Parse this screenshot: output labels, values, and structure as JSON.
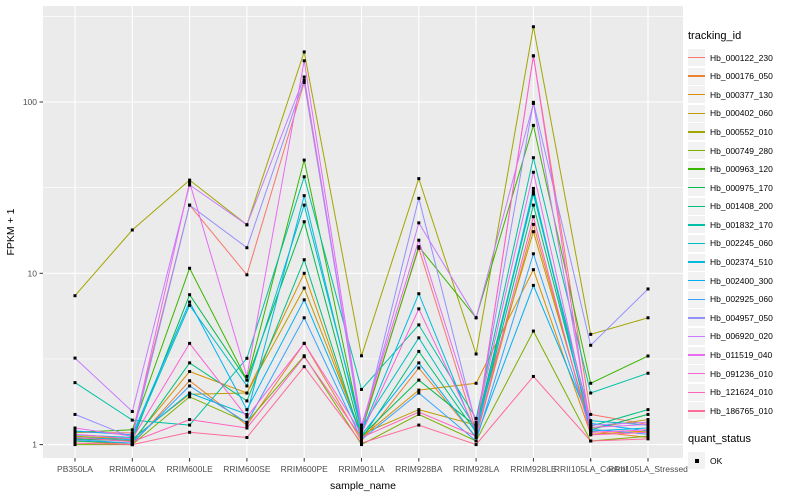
{
  "chart_data": {
    "type": "line",
    "title": "",
    "xlabel": "sample_name",
    "ylabel": "FPKM + 1",
    "y_scale": "log10",
    "y_ticks": [
      {
        "value": 1,
        "label": "1"
      },
      {
        "value": 10,
        "label": "10"
      },
      {
        "value": 100,
        "label": "100"
      }
    ],
    "y_minor_exponents": [
      0.5,
      1.5,
      2.5
    ],
    "ylim_log": [
      0,
      2.56
    ],
    "grid": "on",
    "legend_position": "right",
    "panel_bg": "#EBEBEB",
    "grid_color": "#FFFFFF",
    "tick_text_color": "#4D4D4D",
    "point_color": "#000000",
    "categories": [
      "PB350LA",
      "RRIM600LA",
      "RRIM600LE",
      "RRIM600SE",
      "RRIM600PE",
      "RRIM901LA",
      "RRIM928BA",
      "RRIM928LA",
      "RRIM928LE",
      "RRII105LA_Control",
      "RRII105LA_Stressed"
    ],
    "series": [
      {
        "name": "Hb_000122_230",
        "color": "#F8766D",
        "values": [
          1.18,
          1.17,
          25,
          9.8,
          130,
          1.25,
          14,
          1.2,
          186,
          1.5,
          1.31
        ]
      },
      {
        "name": "Hb_000176_050",
        "color": "#EA8331",
        "values": [
          1.05,
          1.0,
          2.36,
          1.3,
          3.9,
          1.05,
          2.8,
          1.1,
          19.3,
          1.2,
          1.1
        ]
      },
      {
        "name": "Hb_000377_130",
        "color": "#D89000",
        "values": [
          1.1,
          1.05,
          2.67,
          2.0,
          10,
          1.1,
          2.08,
          2.28,
          10.5,
          1.15,
          1.2
        ]
      },
      {
        "name": "Hb_000402_060",
        "color": "#C09B00",
        "values": [
          1.12,
          1.08,
          1.97,
          2.0,
          8.2,
          1.15,
          1.6,
          1.3,
          17.5,
          1.25,
          1.4
        ]
      },
      {
        "name": "Hb_000552_010",
        "color": "#A3A500",
        "values": [
          7.4,
          17.9,
          35,
          19.2,
          196,
          3.3,
          35.7,
          3.38,
          275,
          4.4,
          5.5
        ]
      },
      {
        "name": "Hb_000749_280",
        "color": "#7CAE00",
        "values": [
          1.0,
          1.0,
          1.9,
          1.35,
          3.3,
          1.0,
          1.5,
          1.05,
          4.6,
          1.05,
          1.12
        ]
      },
      {
        "name": "Hb_000963_120",
        "color": "#39B600",
        "values": [
          1.18,
          1.22,
          10.7,
          2.38,
          45.8,
          1.2,
          14.3,
          5.5,
          73,
          2.28,
          3.29
        ]
      },
      {
        "name": "Hb_000975_170",
        "color": "#00BB4E",
        "values": [
          1.08,
          1.05,
          7.5,
          2.38,
          20,
          1.12,
          2.38,
          1.28,
          30,
          1.22,
          1.5
        ]
      },
      {
        "name": "Hb_001408_200",
        "color": "#00BF7D",
        "values": [
          1.05,
          1.02,
          3.0,
          1.8,
          12,
          1.08,
          3.5,
          1.18,
          25,
          1.28,
          1.6
        ]
      },
      {
        "name": "Hb_001832_170",
        "color": "#00C1A7",
        "values": [
          2.3,
          1.39,
          1.3,
          3.19,
          36.6,
          2.1,
          5.0,
          1.42,
          47.3,
          2.0,
          2.61
        ]
      },
      {
        "name": "Hb_002245_060",
        "color": "#00BFC4",
        "values": [
          1.14,
          1.1,
          6.5,
          2.2,
          25,
          1.26,
          4.2,
          1.24,
          29,
          1.38,
          1.3
        ]
      },
      {
        "name": "Hb_002374_510",
        "color": "#00BAE0",
        "values": [
          1.1,
          1.07,
          2.0,
          1.5,
          28.4,
          1.18,
          7.6,
          1.15,
          31.3,
          1.2,
          1.25
        ]
      },
      {
        "name": "Hb_002400_300",
        "color": "#00B0F6",
        "values": [
          1.2,
          1.14,
          6.8,
          1.6,
          7.0,
          1.14,
          3.0,
          1.1,
          8.5,
          1.33,
          1.2
        ]
      },
      {
        "name": "Hb_002925_060",
        "color": "#35A2FF",
        "values": [
          1.07,
          1.02,
          2.2,
          1.34,
          5.5,
          1.07,
          2.0,
          1.05,
          13,
          1.23,
          1.15
        ]
      },
      {
        "name": "Hb_004957_050",
        "color": "#9590FF",
        "values": [
          1.5,
          1.1,
          25,
          14.1,
          134,
          1.2,
          27.4,
          1.3,
          99.6,
          3.8,
          8.1
        ]
      },
      {
        "name": "Hb_006920_020",
        "color": "#C77CFF",
        "values": [
          3.2,
          1.56,
          32.8,
          19.2,
          140,
          1.24,
          19.7,
          5.5,
          98,
          1.3,
          1.35
        ]
      },
      {
        "name": "Hb_011519_040",
        "color": "#E76BF3",
        "values": [
          1.25,
          1.12,
          34,
          2.5,
          174,
          1.3,
          15.6,
          1.35,
          38.9,
          1.26,
          1.31
        ]
      },
      {
        "name": "Hb_091236_010",
        "color": "#FA62DB",
        "values": [
          1.15,
          1.08,
          3.9,
          1.45,
          3.9,
          1.16,
          6.2,
          1.2,
          186,
          1.18,
          1.22
        ]
      },
      {
        "name": "Hb_121624_010",
        "color": "#FF62BC",
        "values": [
          1.1,
          1.04,
          1.4,
          1.25,
          3.26,
          1.1,
          1.55,
          1.12,
          21.4,
          1.14,
          1.18
        ]
      },
      {
        "name": "Hb_186765_010",
        "color": "#FF6A98",
        "values": [
          1.02,
          1.0,
          1.18,
          1.1,
          2.85,
          1.02,
          1.3,
          1.0,
          2.5,
          1.05,
          1.08
        ]
      }
    ],
    "legend": {
      "tracking_title": "tracking_id",
      "quant_title": "quant_status",
      "quant_items": [
        "OK"
      ]
    }
  }
}
